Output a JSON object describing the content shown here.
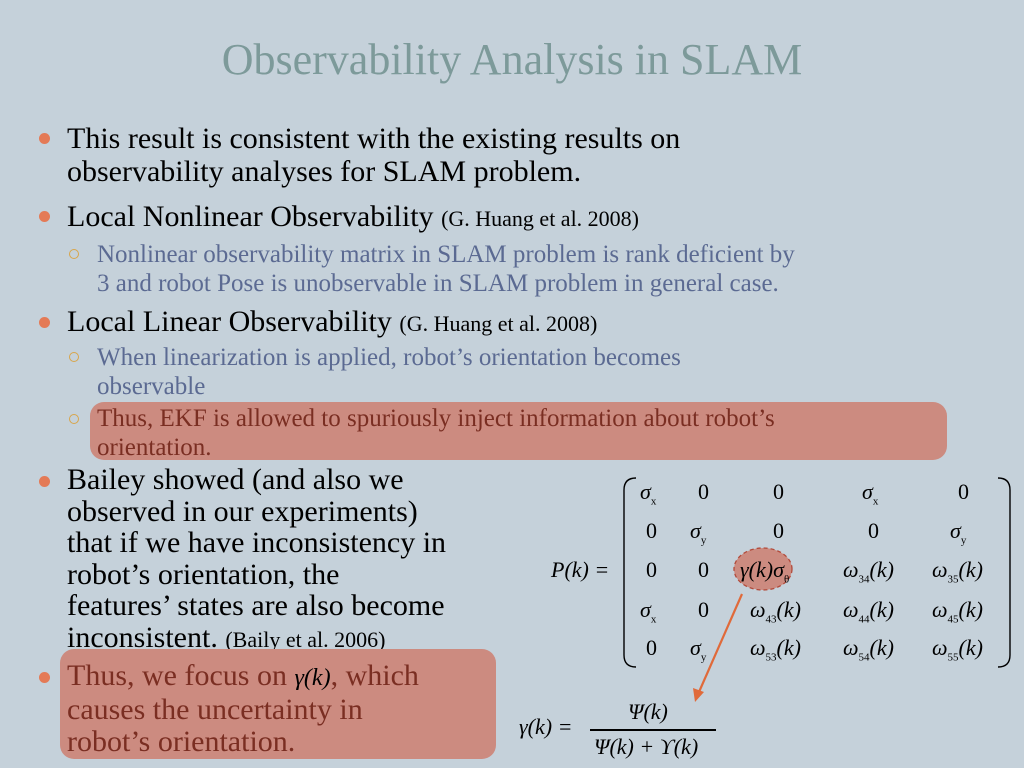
{
  "title": "Observability Analysis in SLAM",
  "bullets": {
    "b1_l1": "This result is consistent with the existing results on",
    "b1_l2": "observability analyses for SLAM problem.",
    "b2_text": "Local Nonlinear Observability",
    "b2_cite": "(G. Huang et al. 2008)",
    "s1_l1": "Nonlinear observability matrix in SLAM problem is rank deficient by",
    "s1_l2": "3 and robot Pose is unobservable in SLAM problem in general case.",
    "b3_text": "Local Linear Observability",
    "b3_cite": "(G. Huang et al. 2008)",
    "s2_l1": "When linearization is applied, robot’s orientation becomes",
    "s2_l2": "observable",
    "s3_l1": "Thus, EKF is allowed to spuriously inject information about robot’s",
    "s3_l2": "orientation.",
    "b4_l1": "Bailey showed (and also we",
    "b4_l2": "observed in our experiments)",
    "b4_l3": "that if we have inconsistency in",
    "b4_l4": "robot’s orientation, the",
    "b4_l5": "features’ states are also become",
    "b4_l6": "inconsistent.",
    "b4_cite": "(Baily et al. 2006)",
    "b5_l1a": "Thus, we focus on",
    "b5_l1b": ", which",
    "b5_l2": "causes the uncertainty in",
    "b5_l3": "robot’s orientation."
  },
  "math": {
    "gamma_k": "γ(k)",
    "matrix_lhs": "P(k) =",
    "gamma_eq": "γ(k) =",
    "numerator": "Ψ(k)",
    "denominator": "Ψ(k) + ϒ(k)"
  },
  "colors": {
    "background": "#c5d1da",
    "title": "#7d9a9a",
    "highlight": "#cc8b80",
    "bullet": "#e47a56",
    "arrow": "#e06a3a"
  }
}
